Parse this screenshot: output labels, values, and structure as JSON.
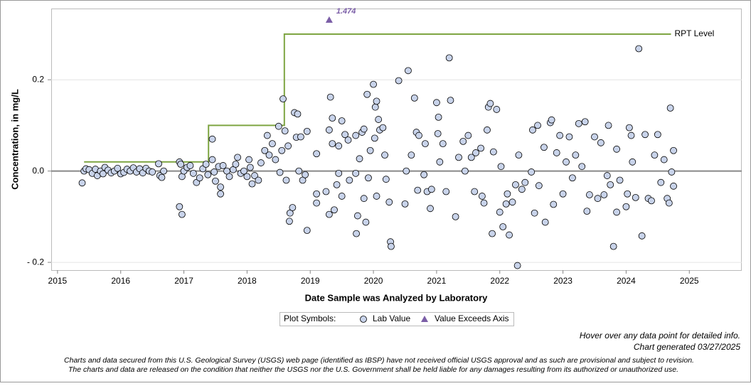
{
  "chart_data": {
    "type": "scatter",
    "y_label": "Concentration, in mg/L",
    "x_label": "Date Sample was Analyzed by Laboratory",
    "legend_title": "Plot Symbols:",
    "note": "Hover over any data point for detailed info.",
    "generated": "Chart generated 03/27/2025",
    "disclaimer": [
      "Charts and data secured from this U.S. Geological Survey (USGS) web page (identified as IBSP) have not received official USGS approval and as such are provisional and subject to revision.",
      "The charts and data are released on the condition that neither the USGS nor the U.S. Government shall be held liable for any damages resulting from its authorized or unauthorized use."
    ],
    "xlim": [
      2014.9,
      2025.83
    ],
    "xticks": [
      2015,
      2016,
      2017,
      2018,
      2019,
      2020,
      2021,
      2022,
      2023,
      2024,
      2025
    ],
    "ylim": [
      -0.217,
      0.356
    ],
    "yticks": [
      {
        "value": -0.2,
        "label": "- 0.2"
      },
      {
        "value": 0,
        "label": "0.0"
      },
      0.2
    ],
    "grid": true,
    "series": [
      {
        "name": "Lab Value",
        "color": "#c8d3ea",
        "x": [
          2015.39,
          2015.42,
          2015.45,
          2015.5,
          2015.55,
          2015.6,
          2015.63,
          2015.68,
          2015.72,
          2015.75,
          2015.8,
          2015.85,
          2015.9,
          2015.95,
          2016.0,
          2016.05,
          2016.1,
          2016.15,
          2016.2,
          2016.25,
          2016.3,
          2016.35,
          2016.4,
          2016.45,
          2016.5,
          2016.6,
          2016.62,
          2016.65,
          2016.68,
          2016.93,
          2016.93,
          2016.97,
          2016.95,
          2016.97,
          2017.0,
          2017.05,
          2017.1,
          2017.15,
          2017.2,
          2017.25,
          2017.3,
          2017.35,
          2017.38,
          2017.45,
          2017.45,
          2017.48,
          2017.5,
          2017.55,
          2017.58,
          2017.58,
          2017.62,
          2017.68,
          2017.72,
          2017.78,
          2017.82,
          2017.85,
          2017.9,
          2017.95,
          2018.0,
          2018.03,
          2018.05,
          2018.08,
          2018.12,
          2018.18,
          2018.22,
          2018.28,
          2018.32,
          2018.35,
          2018.4,
          2018.45,
          2018.5,
          2018.52,
          2018.55,
          2018.57,
          2018.6,
          2018.62,
          2018.65,
          2018.67,
          2018.68,
          2018.72,
          2018.75,
          2018.78,
          2018.8,
          2018.82,
          2018.85,
          2018.88,
          2018.92,
          2018.95,
          2018.95,
          2019.1,
          2019.1,
          2019.1,
          2019.25,
          2019.3,
          2019.32,
          2019.35,
          2019.35,
          2019.3,
          2019.38,
          2019.42,
          2019.45,
          2019.45,
          2019.5,
          2019.5,
          2019.55,
          2019.6,
          2019.62,
          2019.72,
          2019.72,
          2019.73,
          2019.75,
          2019.78,
          2019.82,
          2019.85,
          2019.85,
          2019.88,
          2019.9,
          2019.92,
          2019.95,
          2020.0,
          2020.02,
          2020.03,
          2020.05,
          2020.05,
          2020.08,
          2020.1,
          2020.15,
          2020.18,
          2020.2,
          2020.25,
          2020.27,
          2020.28,
          2020.4,
          2020.5,
          2020.52,
          2020.55,
          2020.6,
          2020.65,
          2020.68,
          2020.7,
          2020.72,
          2020.8,
          2020.82,
          2020.85,
          2020.9,
          2020.92,
          2021.0,
          2021.02,
          2021.03,
          2021.05,
          2021.1,
          2021.15,
          2021.2,
          2021.22,
          2021.3,
          2021.35,
          2021.42,
          2021.45,
          2021.5,
          2021.55,
          2021.6,
          2021.62,
          2021.7,
          2021.72,
          2021.75,
          2021.8,
          2021.82,
          2021.85,
          2021.88,
          2021.9,
          2021.95,
          2022.0,
          2022.02,
          2022.05,
          2022.1,
          2022.12,
          2022.15,
          2022.2,
          2022.25,
          2022.28,
          2022.3,
          2022.35,
          2022.4,
          2022.5,
          2022.52,
          2022.55,
          2022.6,
          2022.62,
          2022.7,
          2022.72,
          2022.8,
          2022.82,
          2022.85,
          2022.9,
          2022.95,
          2023.0,
          2023.05,
          2023.1,
          2023.15,
          2023.2,
          2023.25,
          2023.3,
          2023.35,
          2023.38,
          2023.42,
          2023.5,
          2023.55,
          2023.6,
          2023.65,
          2023.7,
          2023.72,
          2023.75,
          2023.8,
          2023.85,
          2023.85,
          2023.9,
          2024.0,
          2024.02,
          2024.05,
          2024.08,
          2024.1,
          2024.15,
          2024.2,
          2024.25,
          2024.3,
          2024.35,
          2024.4,
          2024.45,
          2024.5,
          2024.55,
          2024.6,
          2024.65,
          2024.68,
          2024.7,
          2024.72,
          2024.75,
          2024.75
        ],
        "values": [
          -0.026,
          0.0,
          0.005,
          0.003,
          -0.005,
          0.004,
          -0.01,
          0.0,
          -0.006,
          0.008,
          0.002,
          -0.004,
          0.0,
          0.006,
          -0.006,
          -0.003,
          0.004,
          0.0,
          0.007,
          -0.002,
          0.005,
          -0.004,
          0.006,
          0.0,
          -0.002,
          0.016,
          -0.01,
          -0.014,
          0.0,
          0.02,
          -0.078,
          -0.095,
          0.015,
          -0.012,
          0.0,
          0.008,
          0.012,
          -0.005,
          -0.025,
          -0.015,
          0.005,
          0.015,
          -0.008,
          0.07,
          0.025,
          -0.002,
          -0.022,
          0.01,
          -0.035,
          -0.05,
          0.012,
          0.0,
          -0.012,
          0.003,
          0.015,
          0.03,
          -0.005,
          0.0,
          -0.012,
          0.025,
          0.008,
          -0.028,
          -0.01,
          -0.02,
          0.018,
          0.045,
          0.078,
          0.035,
          0.06,
          0.025,
          0.098,
          -0.003,
          0.045,
          0.158,
          0.088,
          -0.02,
          0.055,
          -0.11,
          -0.092,
          -0.08,
          0.128,
          0.074,
          0.125,
          0.0,
          0.075,
          -0.02,
          -0.008,
          0.087,
          -0.13,
          0.038,
          -0.07,
          -0.05,
          -0.045,
          0.09,
          0.162,
          0.116,
          0.06,
          -0.095,
          -0.085,
          -0.03,
          -0.005,
          0.055,
          0.11,
          -0.055,
          0.08,
          0.068,
          -0.02,
          -0.005,
          0.078,
          -0.137,
          -0.098,
          0.027,
          0.085,
          0.092,
          -0.06,
          -0.112,
          0.168,
          -0.015,
          0.045,
          0.19,
          0.072,
          0.14,
          0.153,
          -0.055,
          0.113,
          0.09,
          0.095,
          0.035,
          -0.018,
          -0.068,
          -0.155,
          -0.165,
          0.198,
          -0.072,
          0.0,
          0.22,
          0.035,
          0.16,
          0.085,
          -0.042,
          0.078,
          -0.008,
          0.06,
          -0.045,
          -0.082,
          -0.04,
          0.15,
          0.082,
          0.118,
          0.02,
          0.06,
          -0.045,
          0.248,
          0.155,
          -0.1,
          0.03,
          0.065,
          0.0,
          0.078,
          0.03,
          -0.045,
          0.04,
          0.05,
          -0.055,
          -0.07,
          0.09,
          0.14,
          0.148,
          -0.137,
          0.042,
          0.135,
          -0.09,
          0.01,
          -0.122,
          -0.072,
          -0.05,
          -0.14,
          -0.068,
          -0.03,
          -0.207,
          0.035,
          -0.04,
          -0.025,
          -0.002,
          0.09,
          -0.092,
          0.1,
          -0.032,
          0.052,
          -0.112,
          0.106,
          0.112,
          -0.073,
          0.04,
          0.078,
          -0.05,
          0.02,
          0.075,
          -0.015,
          0.035,
          0.104,
          0.01,
          0.108,
          -0.088,
          -0.052,
          0.075,
          -0.06,
          0.062,
          -0.052,
          -0.01,
          0.1,
          -0.03,
          -0.165,
          0.048,
          -0.09,
          -0.02,
          -0.078,
          -0.05,
          0.095,
          0.078,
          0.02,
          -0.058,
          0.268,
          -0.142,
          0.08,
          -0.06,
          -0.065,
          0.035,
          0.08,
          -0.025,
          0.025,
          -0.06,
          -0.07,
          0.138,
          -0.002,
          0.045,
          -0.033
        ]
      },
      {
        "name": "Value Exceeds Axis",
        "color": "#7b5ea7",
        "x": [
          2019.3
        ],
        "values": [
          1.474
        ],
        "value_labels": [
          "1.474"
        ]
      },
      {
        "name": "RPT Level",
        "color": "#7ea542",
        "x": [
          2015.42,
          2017.39,
          2018.59,
          2024.71
        ],
        "values": [
          0.02,
          0.1,
          0.3,
          0.3
        ]
      }
    ]
  }
}
